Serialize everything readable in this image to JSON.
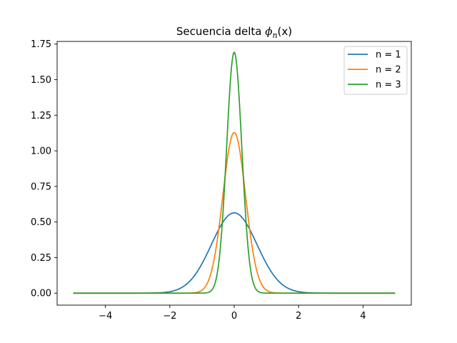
{
  "chart_data": {
    "type": "line",
    "title": {
      "prefix": "Secuencia delta ",
      "symbol": "ϕ",
      "subscript": "n",
      "suffix": "(x)"
    },
    "xlabel": "",
    "ylabel": "",
    "xlim": [
      -5.5,
      5.5
    ],
    "ylim": [
      -0.0842,
      1.7686
    ],
    "x_ticks": [
      -4,
      -2,
      0,
      2,
      4
    ],
    "x_tick_labels": [
      "−4",
      "−2",
      "0",
      "2",
      "4"
    ],
    "y_ticks": [
      0.0,
      0.25,
      0.5,
      0.75,
      1.0,
      1.25,
      1.5,
      1.75
    ],
    "y_tick_labels": [
      "0.00",
      "0.25",
      "0.50",
      "0.75",
      "1.00",
      "1.25",
      "1.50",
      "1.75"
    ],
    "x_range": [
      -5,
      5
    ],
    "function": "n/sqrt(pi) * exp(-n^2 x^2)",
    "grid": false,
    "legend_position": "top-right",
    "series": [
      {
        "name": "n = 1",
        "n": 1,
        "color": "#1f77b4",
        "peak": 0.564
      },
      {
        "name": "n = 2",
        "n": 2,
        "color": "#ff7f0e",
        "peak": 1.128
      },
      {
        "name": "n = 3",
        "n": 3,
        "color": "#2ca02c",
        "peak": 1.693
      }
    ]
  }
}
